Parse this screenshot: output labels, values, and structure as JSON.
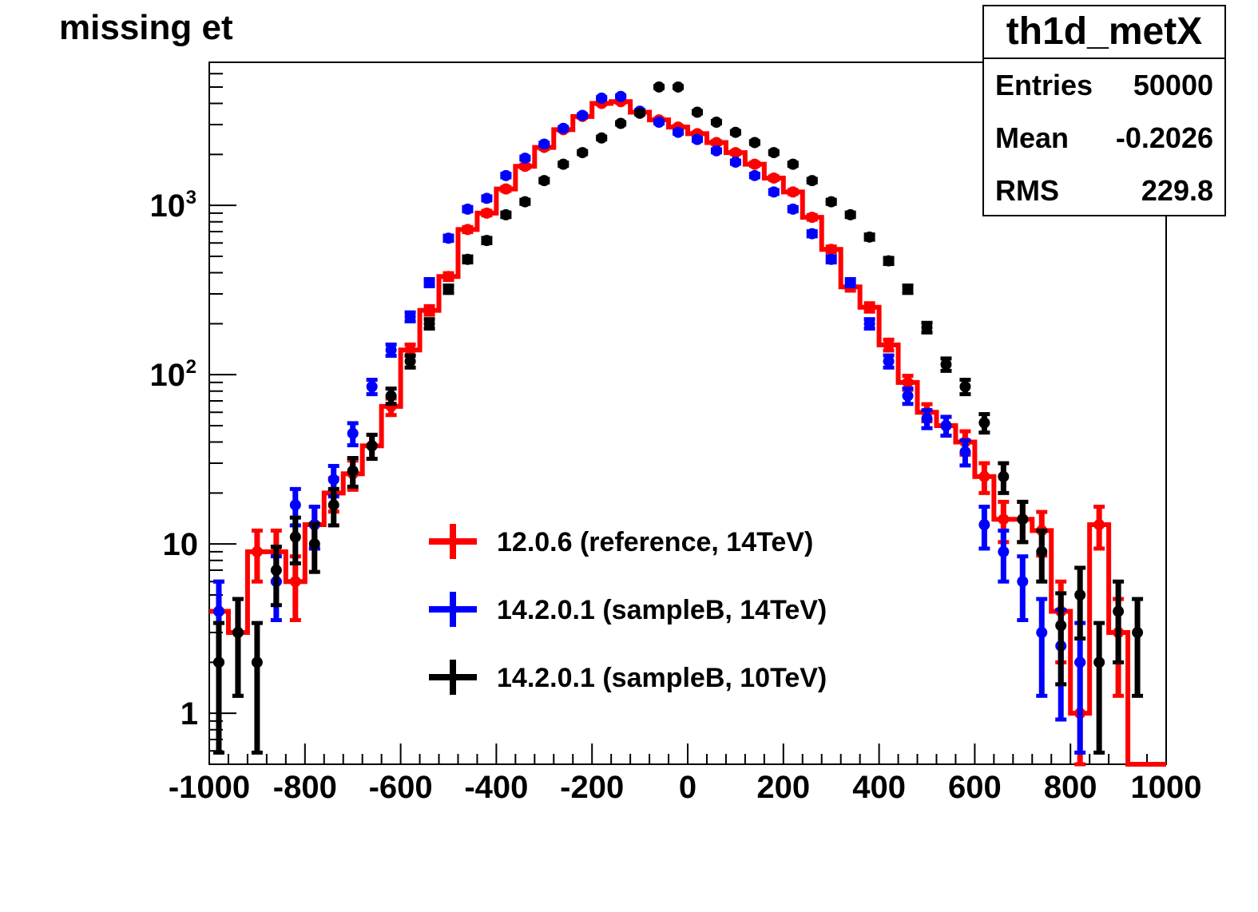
{
  "title": "missing et",
  "statbox": {
    "name": "th1d_metX",
    "rows": [
      {
        "label": "Entries",
        "value": "50000"
      },
      {
        "label": "Mean",
        "value": "-0.2026"
      },
      {
        "label": "RMS",
        "value": "229.8"
      }
    ]
  },
  "colors": {
    "reference": "#ff0000",
    "sampleB_14": "#0000ff",
    "sampleB_10": "#000000"
  },
  "chart_data": {
    "type": "line",
    "title": "missing et",
    "xlabel": "",
    "ylabel": "",
    "xlim": [
      -1000,
      1000
    ],
    "ylim": [
      0.5,
      7000
    ],
    "yscale": "log",
    "x_ticks": [
      -1000,
      -800,
      -600,
      -400,
      -200,
      0,
      200,
      400,
      600,
      800,
      1000
    ],
    "x_tick_labels": [
      "-1000",
      "-800",
      "-600",
      "-400",
      "-200",
      "0",
      "200",
      "400",
      "600",
      "800",
      "1000"
    ],
    "y_ticks": [
      {
        "value": 1,
        "label": "1",
        "sup": ""
      },
      {
        "value": 10,
        "label": "10",
        "sup": ""
      },
      {
        "value": 100,
        "label": "10",
        "sup": "2"
      },
      {
        "value": 1000,
        "label": "10",
        "sup": "3"
      }
    ],
    "bin_width": 40,
    "x": [
      -980,
      -940,
      -900,
      -860,
      -820,
      -780,
      -740,
      -700,
      -660,
      -620,
      -580,
      -540,
      -500,
      -460,
      -420,
      -380,
      -340,
      -300,
      -260,
      -220,
      -180,
      -140,
      -100,
      -60,
      -20,
      20,
      60,
      100,
      140,
      180,
      220,
      260,
      300,
      340,
      380,
      420,
      460,
      500,
      540,
      580,
      620,
      660,
      700,
      740,
      780,
      820,
      860,
      900,
      940,
      980
    ],
    "series": [
      {
        "name": "12.0.6 (reference, 14TeV)",
        "color": "#ff0000",
        "style": "histogram",
        "values": [
          4,
          3,
          9,
          9,
          6,
          13,
          20,
          26,
          38,
          65,
          140,
          240,
          380,
          720,
          900,
          1250,
          1700,
          2200,
          2800,
          3350,
          4000,
          4100,
          3550,
          3200,
          2900,
          2650,
          2350,
          2050,
          1750,
          1450,
          1200,
          850,
          550,
          330,
          250,
          150,
          90,
          60,
          50,
          40,
          25,
          14,
          14,
          12,
          4,
          1,
          13,
          3,
          0,
          0
        ]
      },
      {
        "name": "14.2.0.1 (sampleB, 14TeV)",
        "color": "#0000ff",
        "style": "points",
        "values": [
          4,
          0,
          0,
          6,
          17,
          13,
          24,
          45,
          85,
          140,
          220,
          350,
          640,
          950,
          1100,
          1500,
          1900,
          2300,
          2850,
          3400,
          4300,
          4400,
          3600,
          3100,
          2700,
          2450,
          2100,
          1800,
          1500,
          1200,
          950,
          680,
          480,
          350,
          200,
          120,
          75,
          55,
          50,
          35,
          13,
          9,
          6,
          3,
          2.5,
          2,
          0,
          0,
          0,
          0
        ]
      },
      {
        "name": "14.2.0.1 (sampleB, 10TeV)",
        "color": "#000000",
        "style": "points",
        "values": [
          2,
          3,
          2,
          7,
          11,
          10,
          17,
          27,
          38,
          75,
          120,
          200,
          320,
          480,
          620,
          880,
          1050,
          1400,
          1750,
          2050,
          2500,
          3050,
          3500,
          5000,
          5000,
          3550,
          3100,
          2700,
          2350,
          2050,
          1750,
          1400,
          1050,
          880,
          650,
          470,
          320,
          190,
          115,
          85,
          52,
          25,
          14,
          9,
          3.3,
          5,
          2,
          4,
          3,
          0
        ]
      }
    ],
    "legend": [
      "12.0.6 (reference, 14TeV)",
      "14.2.0.1 (sampleB, 14TeV)",
      "14.2.0.1 (sampleB, 10TeV)"
    ],
    "grid": false
  }
}
